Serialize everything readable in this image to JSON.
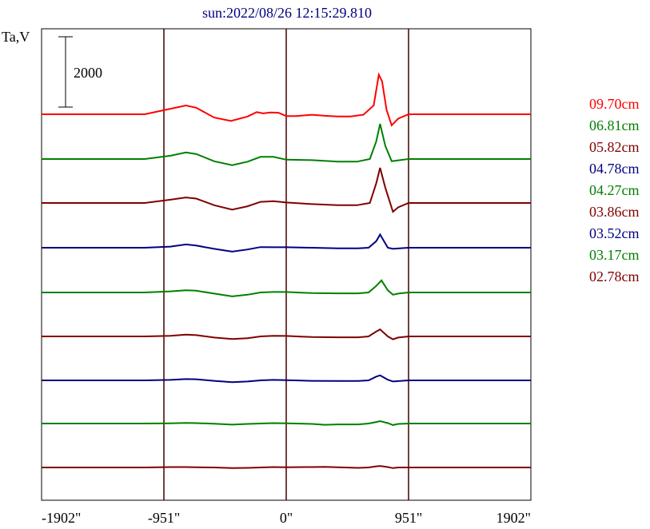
{
  "chart_data": {
    "type": "line",
    "title": "sun:2022/08/26 12:15:29.810",
    "ylabel": "Ta,V",
    "scale_bar_label": "2000",
    "x_ticks": [
      "-1902\"",
      "-951\"",
      "0\"",
      "951\"",
      "1902\""
    ],
    "x_tick_values": [
      -1902,
      -951,
      0,
      951,
      1902
    ],
    "xlim": [
      -1902,
      1902
    ],
    "scale_bar_value": 2000,
    "colors": {
      "red": "#ff0000",
      "green": "#008000",
      "darkred": "#800000",
      "navy": "#000080",
      "frame": "#000000",
      "vline": "#400000"
    },
    "series": [
      {
        "name": "09.70cm",
        "color": "#ff0000",
        "offset": 3700,
        "points": [
          [
            -1902,
            0
          ],
          [
            -1100,
            0
          ],
          [
            -900,
            250
          ],
          [
            -780,
            400
          ],
          [
            -700,
            300
          ],
          [
            -560,
            -150
          ],
          [
            -430,
            -300
          ],
          [
            -300,
            -100
          ],
          [
            -230,
            100
          ],
          [
            -180,
            40
          ],
          [
            -120,
            80
          ],
          [
            -60,
            70
          ],
          [
            0,
            -80
          ],
          [
            80,
            -80
          ],
          [
            200,
            -20
          ],
          [
            300,
            -70
          ],
          [
            400,
            -100
          ],
          [
            500,
            -100
          ],
          [
            600,
            -20
          ],
          [
            680,
            400
          ],
          [
            720,
            1800
          ],
          [
            745,
            1500
          ],
          [
            780,
            200
          ],
          [
            820,
            -500
          ],
          [
            870,
            -200
          ],
          [
            951,
            0
          ],
          [
            1902,
            0
          ]
        ]
      },
      {
        "name": "06.81cm",
        "color": "#008000",
        "offset": 3200,
        "points": [
          [
            -1902,
            0
          ],
          [
            -1100,
            0
          ],
          [
            -900,
            150
          ],
          [
            -780,
            300
          ],
          [
            -700,
            230
          ],
          [
            -560,
            -100
          ],
          [
            -420,
            -280
          ],
          [
            -300,
            -120
          ],
          [
            -200,
            100
          ],
          [
            -100,
            100
          ],
          [
            0,
            -30
          ],
          [
            200,
            -50
          ],
          [
            400,
            -120
          ],
          [
            550,
            -120
          ],
          [
            650,
            0
          ],
          [
            700,
            800
          ],
          [
            730,
            1600
          ],
          [
            770,
            600
          ],
          [
            820,
            -100
          ],
          [
            951,
            0
          ],
          [
            1902,
            0
          ]
        ]
      },
      {
        "name": "05.82cm",
        "color": "#800000",
        "offset": 2700,
        "points": [
          [
            -1902,
            0
          ],
          [
            -1100,
            0
          ],
          [
            -900,
            150
          ],
          [
            -780,
            250
          ],
          [
            -700,
            200
          ],
          [
            -560,
            -100
          ],
          [
            -420,
            -300
          ],
          [
            -300,
            -150
          ],
          [
            -200,
            50
          ],
          [
            -100,
            80
          ],
          [
            0,
            20
          ],
          [
            200,
            -50
          ],
          [
            400,
            -100
          ],
          [
            550,
            -100
          ],
          [
            650,
            0
          ],
          [
            700,
            900
          ],
          [
            730,
            1600
          ],
          [
            770,
            700
          ],
          [
            830,
            -400
          ],
          [
            870,
            -200
          ],
          [
            951,
            0
          ],
          [
            1902,
            0
          ]
        ]
      },
      {
        "name": "04.78cm",
        "color": "#000080",
        "offset": 2200,
        "points": [
          [
            -1902,
            0
          ],
          [
            -1100,
            0
          ],
          [
            -900,
            50
          ],
          [
            -780,
            150
          ],
          [
            -700,
            100
          ],
          [
            -560,
            -50
          ],
          [
            -420,
            -180
          ],
          [
            -300,
            -80
          ],
          [
            -200,
            30
          ],
          [
            -100,
            20
          ],
          [
            0,
            20
          ],
          [
            200,
            0
          ],
          [
            400,
            -30
          ],
          [
            560,
            -30
          ],
          [
            640,
            0
          ],
          [
            700,
            300
          ],
          [
            730,
            600
          ],
          [
            790,
            0
          ],
          [
            830,
            -50
          ],
          [
            951,
            0
          ],
          [
            1902,
            0
          ]
        ]
      },
      {
        "name": "04.27cm",
        "color": "#008000",
        "offset": 1700,
        "points": [
          [
            -1902,
            0
          ],
          [
            -1100,
            0
          ],
          [
            -900,
            50
          ],
          [
            -780,
            100
          ],
          [
            -700,
            80
          ],
          [
            -560,
            -50
          ],
          [
            -420,
            -180
          ],
          [
            -300,
            -100
          ],
          [
            -200,
            0
          ],
          [
            -100,
            20
          ],
          [
            0,
            20
          ],
          [
            200,
            -30
          ],
          [
            400,
            -40
          ],
          [
            560,
            -40
          ],
          [
            640,
            0
          ],
          [
            700,
            300
          ],
          [
            740,
            550
          ],
          [
            790,
            100
          ],
          [
            830,
            -100
          ],
          [
            870,
            -50
          ],
          [
            951,
            0
          ],
          [
            1902,
            0
          ]
        ]
      },
      {
        "name": "03.86cm",
        "color": "#800000",
        "offset": 1200,
        "points": [
          [
            -1902,
            0
          ],
          [
            -1100,
            0
          ],
          [
            -900,
            30
          ],
          [
            -780,
            80
          ],
          [
            -700,
            60
          ],
          [
            -560,
            -50
          ],
          [
            -420,
            -120
          ],
          [
            -300,
            -80
          ],
          [
            -200,
            0
          ],
          [
            -100,
            30
          ],
          [
            0,
            20
          ],
          [
            200,
            -30
          ],
          [
            400,
            -40
          ],
          [
            560,
            -40
          ],
          [
            640,
            0
          ],
          [
            700,
            220
          ],
          [
            730,
            320
          ],
          [
            790,
            0
          ],
          [
            830,
            -130
          ],
          [
            870,
            -50
          ],
          [
            951,
            0
          ],
          [
            1902,
            0
          ]
        ]
      },
      {
        "name": "03.52cm",
        "color": "#000080",
        "offset": 700,
        "points": [
          [
            -1902,
            0
          ],
          [
            -1100,
            0
          ],
          [
            -900,
            20
          ],
          [
            -780,
            60
          ],
          [
            -700,
            50
          ],
          [
            -560,
            -20
          ],
          [
            -420,
            -80
          ],
          [
            -300,
            -50
          ],
          [
            -200,
            0
          ],
          [
            -100,
            20
          ],
          [
            0,
            10
          ],
          [
            200,
            -20
          ],
          [
            400,
            -30
          ],
          [
            560,
            -30
          ],
          [
            640,
            0
          ],
          [
            700,
            170
          ],
          [
            730,
            230
          ],
          [
            790,
            30
          ],
          [
            830,
            -50
          ],
          [
            951,
            0
          ],
          [
            1902,
            0
          ]
        ]
      },
      {
        "name": "03.17cm",
        "color": "#008000",
        "offset": 200,
        "points": [
          [
            -1902,
            0
          ],
          [
            -1100,
            0
          ],
          [
            -900,
            10
          ],
          [
            -780,
            30
          ],
          [
            -700,
            20
          ],
          [
            -560,
            -10
          ],
          [
            -420,
            -50
          ],
          [
            -300,
            -20
          ],
          [
            -200,
            0
          ],
          [
            -100,
            20
          ],
          [
            0,
            10
          ],
          [
            200,
            -20
          ],
          [
            300,
            -60
          ],
          [
            400,
            -40
          ],
          [
            560,
            -40
          ],
          [
            640,
            0
          ],
          [
            700,
            70
          ],
          [
            730,
            110
          ],
          [
            790,
            20
          ],
          [
            830,
            -70
          ],
          [
            870,
            -20
          ],
          [
            951,
            0
          ],
          [
            1902,
            0
          ]
        ]
      },
      {
        "name": "02.78cm",
        "color": "#800000",
        "offset": -300,
        "points": [
          [
            -1902,
            0
          ],
          [
            -1100,
            0
          ],
          [
            -900,
            20
          ],
          [
            -780,
            20
          ],
          [
            -700,
            10
          ],
          [
            -560,
            0
          ],
          [
            -420,
            -30
          ],
          [
            -300,
            -20
          ],
          [
            -200,
            0
          ],
          [
            -100,
            20
          ],
          [
            0,
            10
          ],
          [
            200,
            20
          ],
          [
            300,
            30
          ],
          [
            400,
            10
          ],
          [
            560,
            -20
          ],
          [
            640,
            0
          ],
          [
            700,
            50
          ],
          [
            730,
            70
          ],
          [
            790,
            20
          ],
          [
            830,
            -30
          ],
          [
            870,
            0
          ],
          [
            951,
            0
          ],
          [
            1902,
            0
          ]
        ]
      }
    ]
  }
}
